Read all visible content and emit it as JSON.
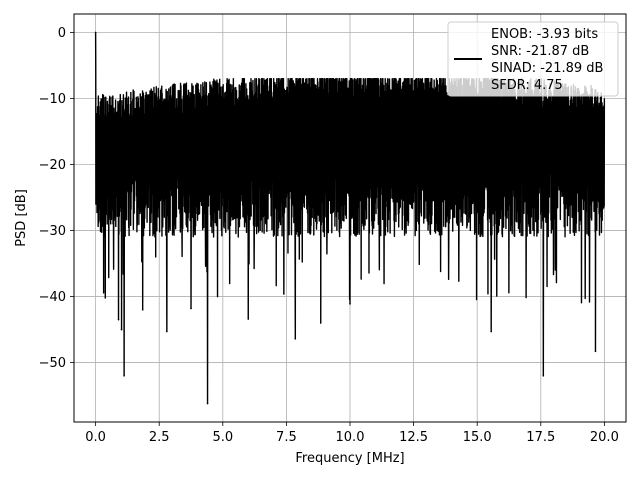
{
  "chart_data": {
    "type": "line",
    "title": "",
    "xlabel": "Frequency [MHz]",
    "ylabel": "PSD [dB]",
    "xlim": [
      -0.85,
      20.85
    ],
    "ylim": [
      -59.0,
      2.8
    ],
    "x_ticks": [
      0.0,
      2.5,
      5.0,
      7.5,
      10.0,
      12.5,
      15.0,
      17.5,
      20.0
    ],
    "x_tick_labels": [
      "0.0",
      "2.5",
      "5.0",
      "7.5",
      "10.0",
      "12.5",
      "15.0",
      "17.5",
      "20.0"
    ],
    "y_ticks": [
      0,
      -10,
      -20,
      -30,
      -40,
      -50
    ],
    "y_tick_labels": [
      "0",
      "−10",
      "−20",
      "−30",
      "−40",
      "−50"
    ],
    "grid": true,
    "legend_position": "top-right",
    "legend_text": [
      "ENOB: -3.93 bits",
      "SNR: -21.87 dB",
      "SINAD: -21.89 dB",
      "SFDR: 4.75"
    ],
    "series_color": "#000000",
    "series": [
      {
        "x_range": [
          0.0,
          20.0
        ],
        "notable_points": [
          {
            "x": 0.0,
            "y": 0.0
          },
          {
            "x": 0.38,
            "y": -40.2
          },
          {
            "x": 0.9,
            "y": -43.5
          },
          {
            "x": 1.02,
            "y": -45.0
          },
          {
            "x": 1.12,
            "y": -52.0
          },
          {
            "x": 1.85,
            "y": -42.0
          },
          {
            "x": 2.8,
            "y": -45.3
          },
          {
            "x": 3.75,
            "y": -41.8
          },
          {
            "x": 4.4,
            "y": -56.2
          },
          {
            "x": 6.0,
            "y": -43.4
          },
          {
            "x": 7.4,
            "y": -39.6
          },
          {
            "x": 7.85,
            "y": -46.4
          },
          {
            "x": 8.85,
            "y": -44.0
          },
          {
            "x": 10.0,
            "y": -41.1
          },
          {
            "x": 15.55,
            "y": -45.3
          },
          {
            "x": 17.6,
            "y": -52.0
          },
          {
            "x": 19.65,
            "y": -48.3
          }
        ],
        "typical_floor_db": -22,
        "typical_upper_db": -10,
        "max_upper_db": -7
      }
    ]
  }
}
